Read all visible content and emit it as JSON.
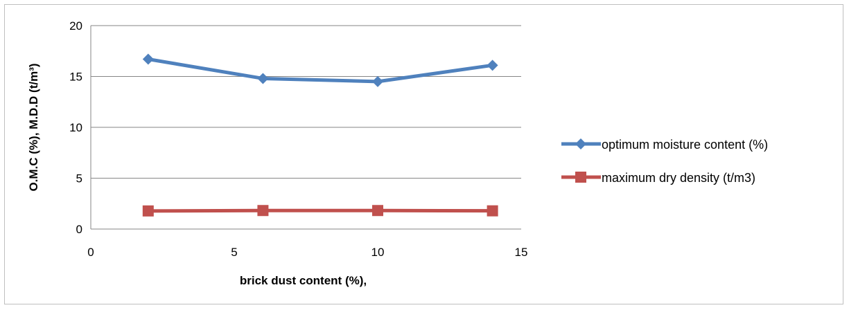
{
  "chart_data": {
    "type": "line",
    "title": "",
    "xlabel": "brick dust content (%),",
    "ylabel": "O.M.C (%), M.D.D (t/m³)",
    "xlim": [
      0,
      15
    ],
    "ylim": [
      0,
      20
    ],
    "xticks": [
      0,
      5,
      10,
      15
    ],
    "yticks": [
      0,
      5,
      10,
      15,
      20
    ],
    "grid": "horizontal",
    "legend_position": "right",
    "series": [
      {
        "name": "optimum moisture content (%)",
        "color": "#4f81bd",
        "marker": "diamond",
        "points": [
          {
            "x": 2,
            "y": 16.7
          },
          {
            "x": 6,
            "y": 14.8
          },
          {
            "x": 10,
            "y": 14.5
          },
          {
            "x": 14,
            "y": 16.1
          }
        ]
      },
      {
        "name": "maximum dry density (t/m3)",
        "color": "#c0504d",
        "marker": "square",
        "points": [
          {
            "x": 2,
            "y": 1.78
          },
          {
            "x": 6,
            "y": 1.82
          },
          {
            "x": 10,
            "y": 1.82
          },
          {
            "x": 14,
            "y": 1.79
          }
        ]
      }
    ]
  }
}
